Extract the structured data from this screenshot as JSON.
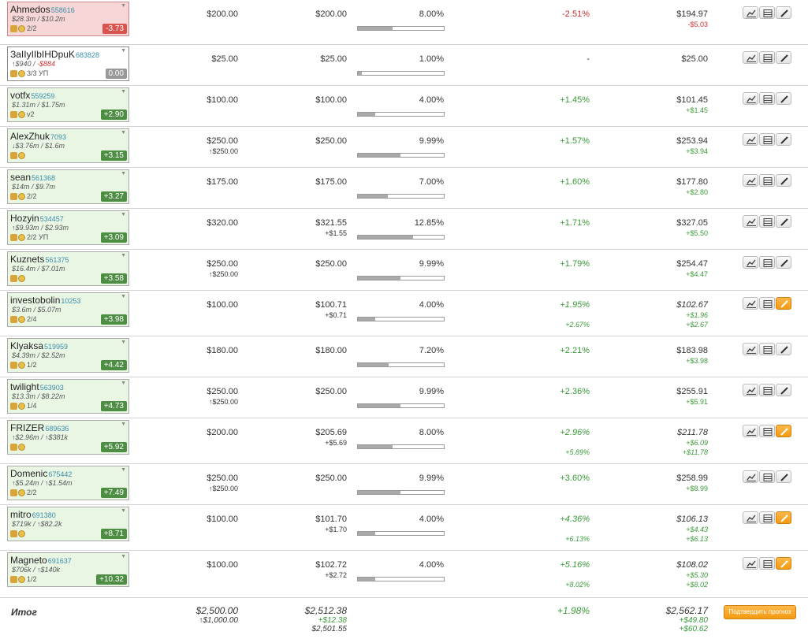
{
  "icons": {
    "chart": "chart-icon",
    "table": "table-icon",
    "edit": "pencil-icon"
  },
  "colors": {
    "positive": "#3a9a3a",
    "negative": "#cc3333",
    "score_bg": "#4e8e44",
    "active_edit": "#f39a11"
  },
  "rows": [
    {
      "name": "Ahmedos",
      "id": "558616",
      "balance": "$28.3m / $10.2m",
      "meta": "2/2",
      "score": "-3.73",
      "stake": "$200.00",
      "stake_sub": "",
      "current": "$200.00",
      "current_sub": "",
      "share": "8.00%",
      "share_pct": 8.0,
      "change": "-2.51%",
      "change_sub": "",
      "value": "$194.97",
      "value_sub": "-$5.03",
      "value_sub2": "",
      "state": "loss",
      "edit_active": false
    },
    {
      "name": "ЗаIIуIIbIHDpuK",
      "id": "683828",
      "balance": "↑$940 / ",
      "balance_neg": "-$884",
      "meta": "3/3 УП",
      "score": "0.00",
      "stake": "$25.00",
      "stake_sub": "",
      "current": "$25.00",
      "current_sub": "",
      "share": "1.00%",
      "share_pct": 1.0,
      "change": "-",
      "change_sub": "",
      "value": "$25.00",
      "value_sub": "",
      "value_sub2": "",
      "state": "neutral",
      "edit_active": false
    },
    {
      "name": "votfx",
      "id": "559259",
      "balance": "$1.31m / $1.75m",
      "meta": "v2",
      "score": "+2.90",
      "stake": "$100.00",
      "stake_sub": "",
      "current": "$100.00",
      "current_sub": "",
      "share": "4.00%",
      "share_pct": 4.0,
      "change": "+1.45%",
      "change_sub": "",
      "value": "$101.45",
      "value_sub": "+$1.45",
      "value_sub2": "",
      "state": "gain",
      "edit_active": false
    },
    {
      "name": "AlexZhuk",
      "id": "7093",
      "balance": "↓$3.76m / $1.6m",
      "meta": "",
      "score": "+3.15",
      "stake": "$250.00",
      "stake_sub": "↑$250.00",
      "current": "$250.00",
      "current_sub": "",
      "share": "9.99%",
      "share_pct": 9.99,
      "change": "+1.57%",
      "change_sub": "",
      "value": "$253.94",
      "value_sub": "+$3.94",
      "value_sub2": "",
      "state": "gain",
      "edit_active": false
    },
    {
      "name": "sean",
      "id": "561368",
      "balance": "$14m / $9.7m",
      "meta": "2/2",
      "score": "+3.27",
      "stake": "$175.00",
      "stake_sub": "",
      "current": "$175.00",
      "current_sub": "",
      "share": "7.00%",
      "share_pct": 7.0,
      "change": "+1.60%",
      "change_sub": "",
      "value": "$177.80",
      "value_sub": "+$2.80",
      "value_sub2": "",
      "state": "gain",
      "edit_active": false
    },
    {
      "name": "Hozyin",
      "id": "534457",
      "balance": "↑$9.93m / $2.93m",
      "meta": "2/2 УП",
      "score": "+3.09",
      "stake": "$320.00",
      "stake_sub": "",
      "current": "$321.55",
      "current_sub": "+$1.55",
      "share": "12.85%",
      "share_pct": 12.85,
      "change": "+1.71%",
      "change_sub": "",
      "value": "$327.05",
      "value_sub": "+$5.50",
      "value_sub2": "",
      "state": "gain",
      "edit_active": false
    },
    {
      "name": "Kuznets",
      "id": "561375",
      "balance": "$16.4m / $7.01m",
      "meta": "",
      "score": "+3.58",
      "stake": "$250.00",
      "stake_sub": "↑$250.00",
      "current": "$250.00",
      "current_sub": "",
      "share": "9.99%",
      "share_pct": 9.99,
      "change": "+1.79%",
      "change_sub": "",
      "value": "$254.47",
      "value_sub": "+$4.47",
      "value_sub2": "",
      "state": "gain",
      "edit_active": false
    },
    {
      "name": "investobolin",
      "id": "10253",
      "balance": "$3.6m / $5.07m",
      "meta": "2/4",
      "score": "+3.98",
      "stake": "$100.00",
      "stake_sub": "",
      "current": "$100.71",
      "current_sub": "+$0.71",
      "share": "4.00%",
      "share_pct": 4.0,
      "change": "+1.95%",
      "change_sub": "+2.67%",
      "value": "$102.67",
      "value_sub": "+$1.96",
      "value_sub2": "+$2.67",
      "state": "gain",
      "edit_active": true
    },
    {
      "name": "Klyaksa",
      "id": "519959",
      "balance": "$4.39m / $2.52m",
      "meta": "1/2",
      "score": "+4.42",
      "stake": "$180.00",
      "stake_sub": "",
      "current": "$180.00",
      "current_sub": "",
      "share": "7.20%",
      "share_pct": 7.2,
      "change": "+2.21%",
      "change_sub": "",
      "value": "$183.98",
      "value_sub": "+$3.98",
      "value_sub2": "",
      "state": "gain",
      "edit_active": false
    },
    {
      "name": "twilight",
      "id": "563903",
      "balance": "$13.3m / $8.22m",
      "meta": "1/4",
      "score": "+4.73",
      "stake": "$250.00",
      "stake_sub": "↑$250.00",
      "current": "$250.00",
      "current_sub": "",
      "share": "9.99%",
      "share_pct": 9.99,
      "change": "+2.36%",
      "change_sub": "",
      "value": "$255.91",
      "value_sub": "+$5.91",
      "value_sub2": "",
      "state": "gain",
      "edit_active": false
    },
    {
      "name": "FRIZER",
      "id": "689636",
      "balance": "↑$2.96m / ↑$381k",
      "meta": "",
      "score": "+5.92",
      "stake": "$200.00",
      "stake_sub": "",
      "current": "$205.69",
      "current_sub": "+$5.69",
      "share": "8.00%",
      "share_pct": 8.0,
      "change": "+2.96%",
      "change_sub": "+5.89%",
      "value": "$211.78",
      "value_sub": "+$6.09",
      "value_sub2": "+$11.78",
      "state": "gain",
      "edit_active": true
    },
    {
      "name": "Domenic",
      "id": "675442",
      "balance": "↑$5.24m / ↑$1.54m",
      "meta": "2/2",
      "score": "+7.49",
      "stake": "$250.00",
      "stake_sub": "↑$250.00",
      "current": "$250.00",
      "current_sub": "",
      "share": "9.99%",
      "share_pct": 9.99,
      "change": "+3.60%",
      "change_sub": "",
      "value": "$258.99",
      "value_sub": "+$8.99",
      "value_sub2": "",
      "state": "gain",
      "edit_active": false
    },
    {
      "name": "mitro",
      "id": "691380",
      "balance": "$719k / ↑$82.2k",
      "meta": "",
      "score": "+8.71",
      "stake": "$100.00",
      "stake_sub": "",
      "current": "$101.70",
      "current_sub": "+$1.70",
      "share": "4.00%",
      "share_pct": 4.0,
      "change": "+4.36%",
      "change_sub": "+6.13%",
      "value": "$106.13",
      "value_sub": "+$4.43",
      "value_sub2": "+$6.13",
      "state": "gain",
      "edit_active": true
    },
    {
      "name": "Magneto",
      "id": "691637",
      "balance": "$706k / ↑$140k",
      "meta": "1/2",
      "score": "+10.32",
      "stake": "$100.00",
      "stake_sub": "",
      "current": "$102.72",
      "current_sub": "+$2.72",
      "share": "4.00%",
      "share_pct": 4.0,
      "change": "+5.16%",
      "change_sub": "+8.02%",
      "value": "$108.02",
      "value_sub": "+$5.30",
      "value_sub2": "+$8.02",
      "state": "gain",
      "edit_active": true
    }
  ],
  "total": {
    "label": "Итог",
    "stake": "$2,500.00",
    "stake_sub": "↑$1,000.00",
    "current": "$2,512.38",
    "current_sub": "+$12.38",
    "current_sub2": "$2,501.55",
    "change": "+1.98%",
    "value": "$2,562.17",
    "value_sub": "+$49.80",
    "value_sub2": "+$60.62",
    "confirm_label": "Подтвердить прогноз"
  }
}
